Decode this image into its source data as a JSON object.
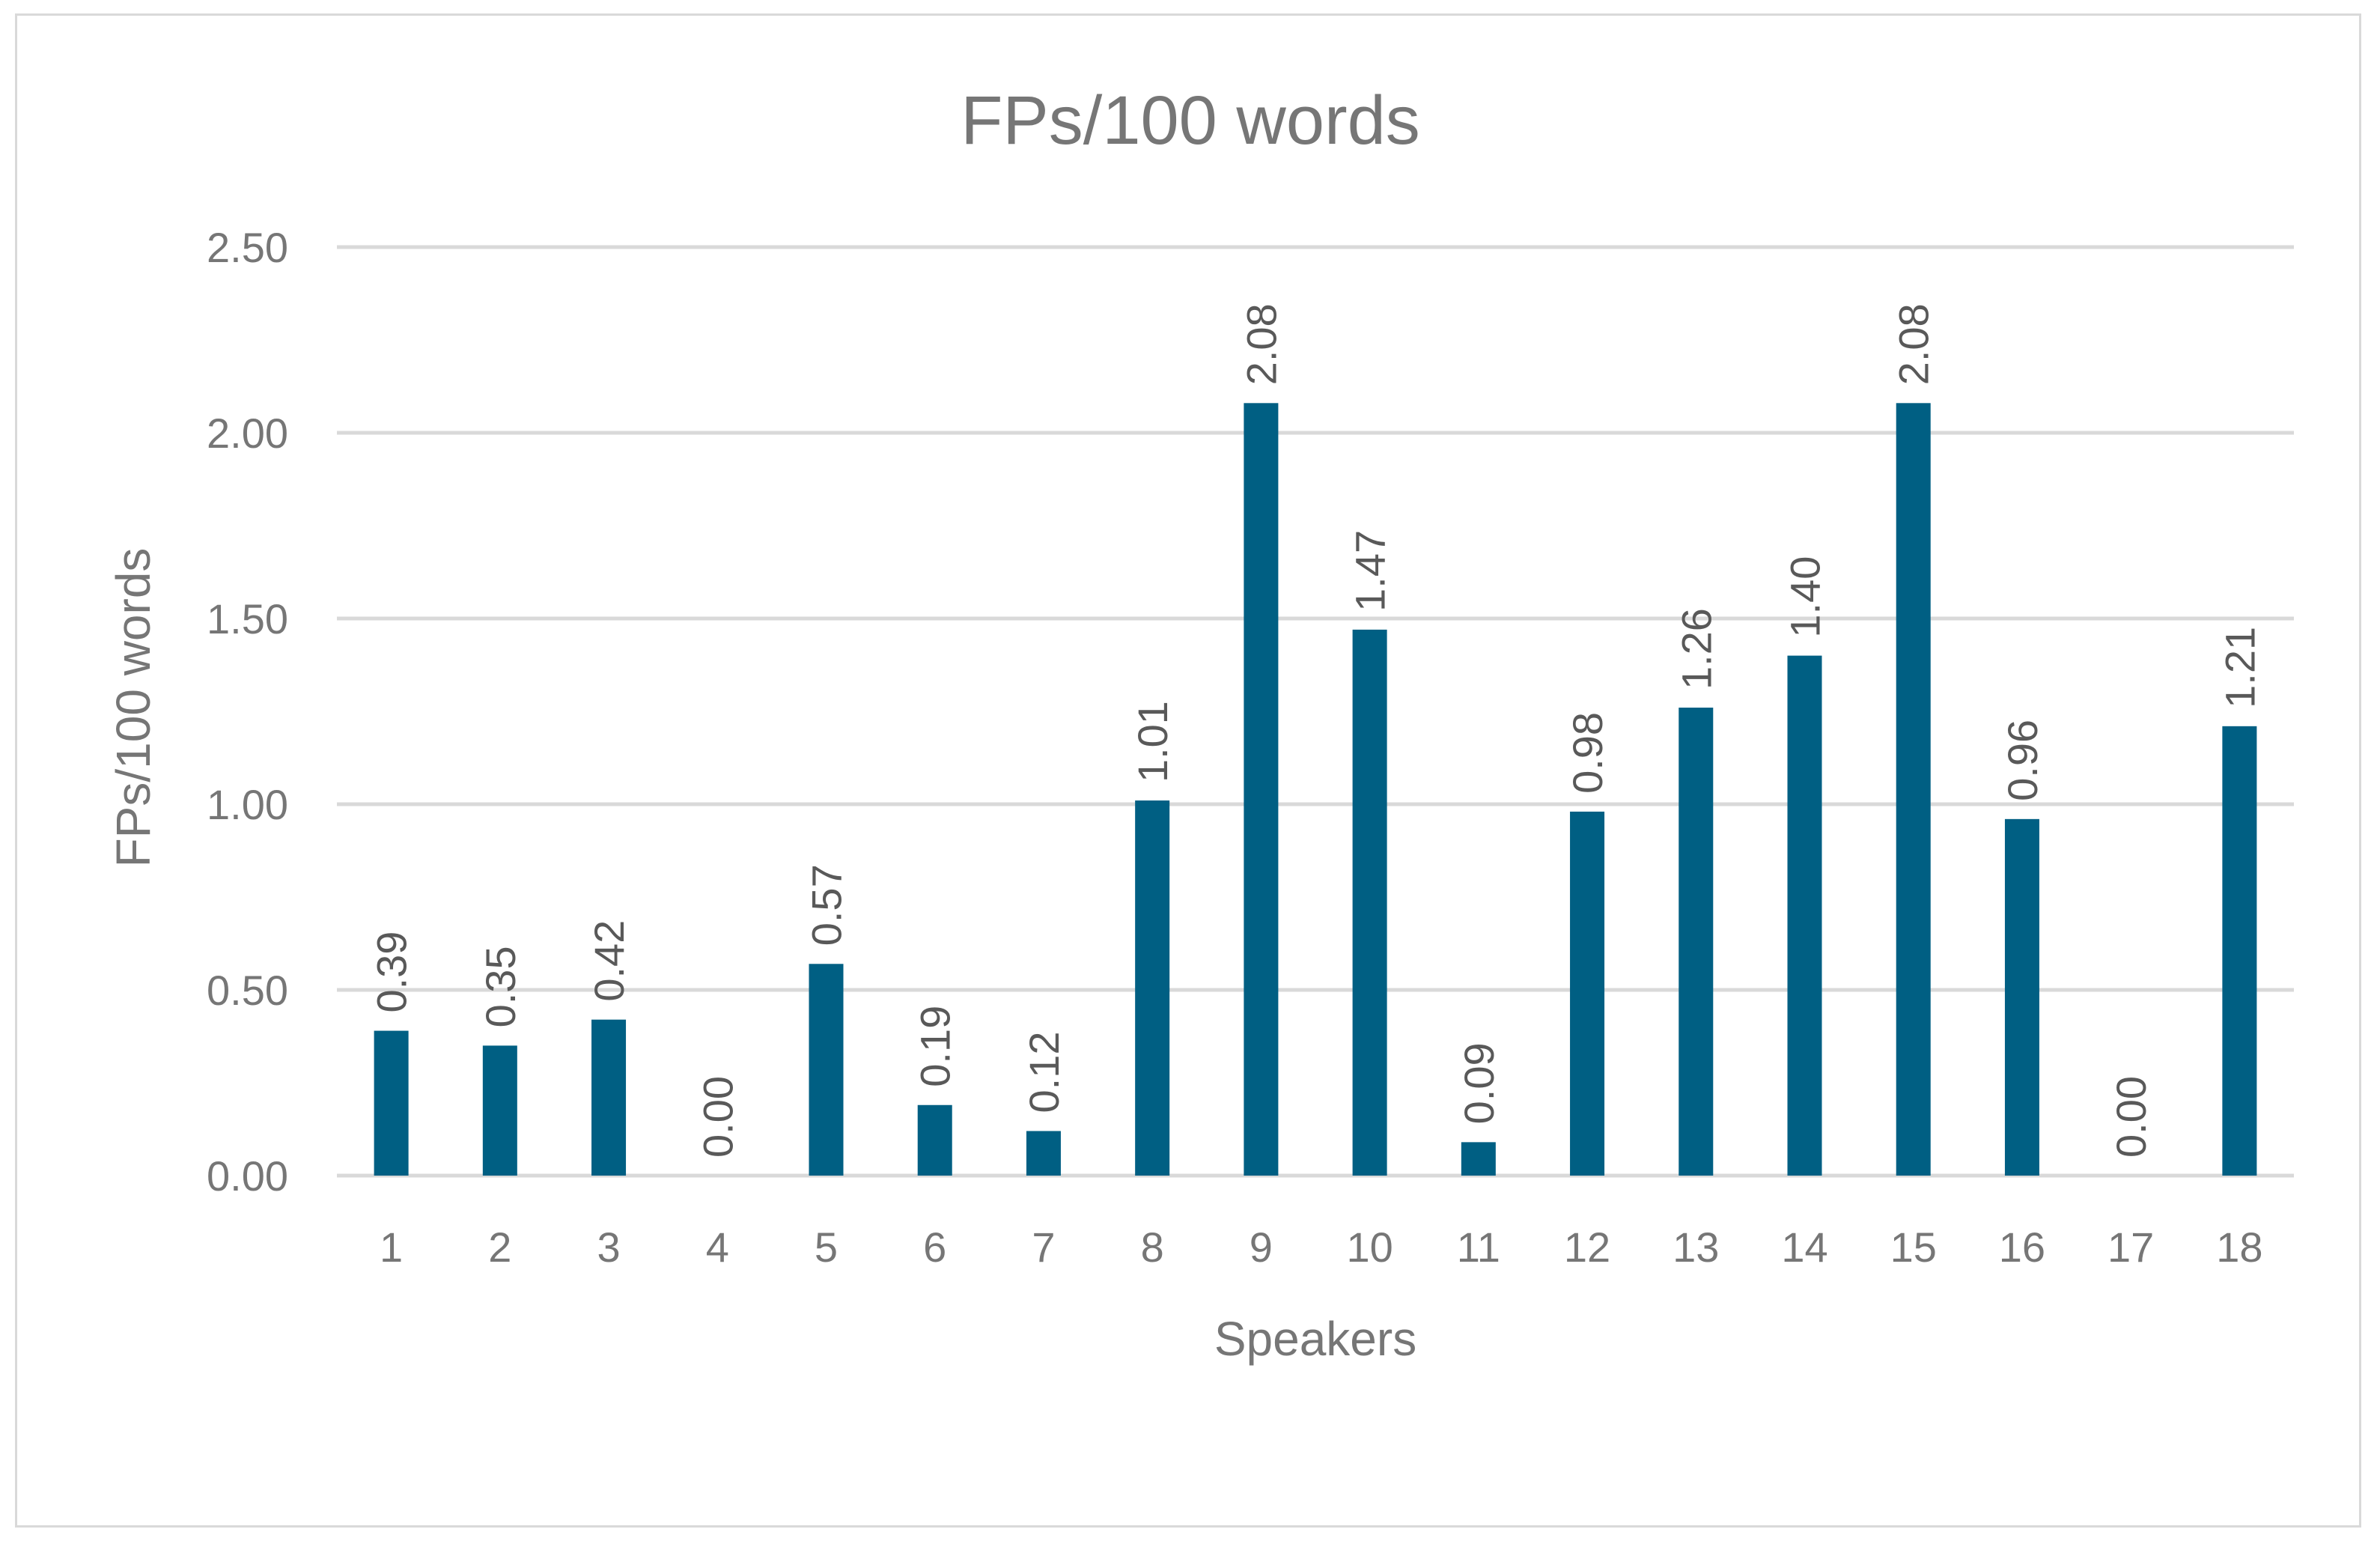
{
  "chart_data": {
    "type": "bar",
    "title": "FPs/100 words",
    "xlabel": "Speakers",
    "ylabel": "FPs/100 words",
    "categories": [
      "1",
      "2",
      "3",
      "4",
      "5",
      "6",
      "7",
      "8",
      "9",
      "10",
      "11",
      "12",
      "13",
      "14",
      "15",
      "16",
      "17",
      "18"
    ],
    "values": [
      0.39,
      0.35,
      0.42,
      0.0,
      0.57,
      0.19,
      0.12,
      1.01,
      2.08,
      1.47,
      0.09,
      0.98,
      1.26,
      1.4,
      2.08,
      0.96,
      0.0,
      1.21
    ],
    "value_labels": [
      "0.39",
      "0.35",
      "0.42",
      "0.00",
      "0.57",
      "0.19",
      "0.12",
      "1.01",
      "2.08",
      "1.47",
      "0.09",
      "0.98",
      "1.26",
      "1.40",
      "2.08",
      "0.96",
      "0.00",
      "1.21"
    ],
    "ylim": [
      0,
      2.5
    ],
    "yticks": [
      0,
      0.5,
      1.0,
      1.5,
      2.0,
      2.5
    ],
    "ytick_labels": [
      "0.00",
      "0.50",
      "1.00",
      "1.50",
      "2.00",
      "2.50"
    ],
    "grid": true,
    "legend": "none",
    "bar_color": "#005f83"
  }
}
